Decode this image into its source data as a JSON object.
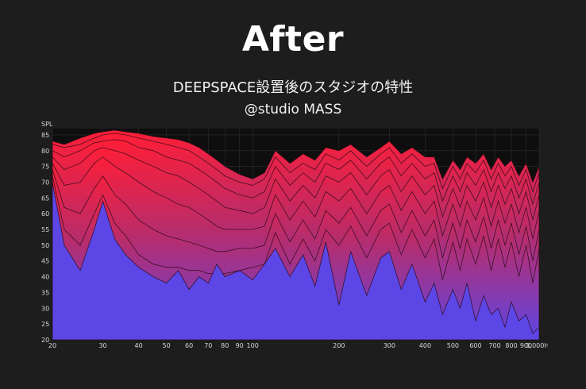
{
  "title": "After",
  "subtitle": "DEEPSPACE設置後のスタジオの特性",
  "studio": "@studio MASS",
  "chart_data": {
    "type": "area",
    "title": "After",
    "ylabel": "SPL",
    "xlabel": "",
    "xscale": "log",
    "xlim": [
      20,
      1000
    ],
    "ylim": [
      20,
      87
    ],
    "xticks": [
      {
        "v": 20,
        "label": "20"
      },
      {
        "v": 30,
        "label": "30"
      },
      {
        "v": 40,
        "label": "40"
      },
      {
        "v": 50,
        "label": "50"
      },
      {
        "v": 60,
        "label": "60"
      },
      {
        "v": 70,
        "label": "70"
      },
      {
        "v": 80,
        "label": "80"
      },
      {
        "v": 90,
        "label": "90"
      },
      {
        "v": 100,
        "label": "100"
      },
      {
        "v": 200,
        "label": "200"
      },
      {
        "v": 300,
        "label": "300"
      },
      {
        "v": 400,
        "label": "400"
      },
      {
        "v": 500,
        "label": "500"
      },
      {
        "v": 600,
        "label": "600"
      },
      {
        "v": 700,
        "label": "700"
      },
      {
        "v": 800,
        "label": "800"
      },
      {
        "v": 900,
        "label": "900"
      },
      {
        "v": 1000,
        "label": "1,000Hz"
      }
    ],
    "yticks": [
      20,
      25,
      30,
      35,
      40,
      45,
      50,
      55,
      60,
      65,
      70,
      75,
      80,
      85
    ],
    "colors": {
      "top": "#ff1e36",
      "bottom": "#5c46e6",
      "background": "#0e0e0e",
      "grid": "#2e2e2e"
    },
    "x": [
      20,
      22,
      25,
      28,
      30,
      33,
      36,
      40,
      45,
      50,
      55,
      60,
      65,
      70,
      75,
      80,
      90,
      100,
      110,
      120,
      135,
      150,
      165,
      180,
      200,
      220,
      250,
      280,
      300,
      330,
      360,
      400,
      430,
      460,
      500,
      530,
      560,
      600,
      640,
      680,
      720,
      760,
      800,
      850,
      900,
      950,
      1000
    ],
    "series": [
      {
        "values": [
          83,
          82,
          84,
          85.5,
          86,
          86.5,
          86,
          85.5,
          84.5,
          84,
          83.5,
          82.5,
          81,
          79,
          77,
          75,
          72.5,
          71,
          73,
          80,
          76,
          79,
          77,
          81,
          80,
          82,
          78,
          81,
          83,
          79,
          81,
          78,
          78,
          71,
          77,
          74,
          78,
          76,
          79,
          74,
          78,
          75,
          77,
          72,
          76,
          70,
          75
        ]
      },
      {
        "values": [
          82,
          81,
          82,
          84,
          85,
          85.5,
          85,
          84,
          83,
          82,
          81,
          80,
          78,
          76,
          74,
          72,
          70,
          69,
          71,
          78,
          73,
          76,
          74,
          79,
          77,
          80,
          75,
          79,
          81,
          76,
          79,
          75,
          76,
          68,
          75,
          71,
          76,
          73,
          77,
          71,
          76,
          72,
          75,
          69,
          74,
          67,
          73
        ]
      },
      {
        "values": [
          80,
          78,
          80,
          82.5,
          83,
          83.5,
          83,
          81,
          80,
          78,
          77,
          76,
          74,
          72,
          70,
          68,
          66,
          65,
          67,
          75,
          69,
          73,
          70,
          76,
          74,
          77,
          71,
          76,
          78,
          72,
          76,
          71,
          73,
          64,
          72,
          67,
          73,
          69,
          74,
          67,
          73,
          68,
          72,
          65,
          71,
          63,
          70
        ]
      },
      {
        "values": [
          78,
          74,
          76,
          80,
          81,
          80,
          79,
          77,
          75,
          73,
          72,
          70,
          68,
          66,
          64,
          62,
          61,
          60,
          62,
          71,
          64,
          69,
          65,
          72,
          70,
          73,
          66,
          72,
          74,
          67,
          72,
          66,
          69,
          59,
          68,
          62,
          69,
          64,
          70,
          62,
          69,
          63,
          68,
          60,
          67,
          58,
          66
        ]
      },
      {
        "values": [
          76,
          69,
          70,
          76,
          78,
          75,
          73,
          70,
          67,
          65,
          63,
          62,
          60,
          58,
          56,
          55,
          55,
          55,
          56,
          66,
          58,
          64,
          59,
          67,
          64,
          68,
          60,
          67,
          69,
          61,
          67,
          60,
          64,
          53,
          63,
          56,
          64,
          58,
          65,
          56,
          64,
          57,
          63,
          54,
          62,
          52,
          61
        ]
      },
      {
        "values": [
          74,
          62,
          60,
          68,
          72,
          66,
          63,
          58,
          55,
          53,
          52,
          51,
          50,
          49,
          48,
          48,
          49,
          49,
          50,
          60,
          51,
          58,
          52,
          61,
          57,
          62,
          53,
          61,
          63,
          54,
          61,
          53,
          58,
          46,
          57,
          49,
          58,
          51,
          59,
          49,
          58,
          50,
          57,
          47,
          56,
          45,
          55
        ]
      },
      {
        "values": [
          72,
          55,
          50,
          60,
          66,
          57,
          53,
          47,
          44,
          43,
          43,
          42,
          42,
          41,
          41,
          41,
          42,
          43,
          44,
          54,
          44,
          52,
          45,
          55,
          50,
          56,
          46,
          55,
          57,
          47,
          55,
          46,
          52,
          39,
          51,
          42,
          52,
          44,
          53,
          42,
          52,
          43,
          51,
          40,
          50,
          38,
          49
        ]
      },
      {
        "values": [
          70,
          50,
          42,
          55,
          64,
          52,
          47,
          43,
          40,
          38,
          42,
          36,
          40,
          38,
          44,
          40,
          42,
          39,
          44,
          49,
          40,
          47,
          37,
          51,
          31,
          48,
          34,
          46,
          48,
          36,
          44,
          32,
          38,
          28,
          36,
          30,
          38,
          26,
          34,
          28,
          30,
          24,
          32,
          26,
          28,
          22,
          24
        ]
      }
    ]
  }
}
